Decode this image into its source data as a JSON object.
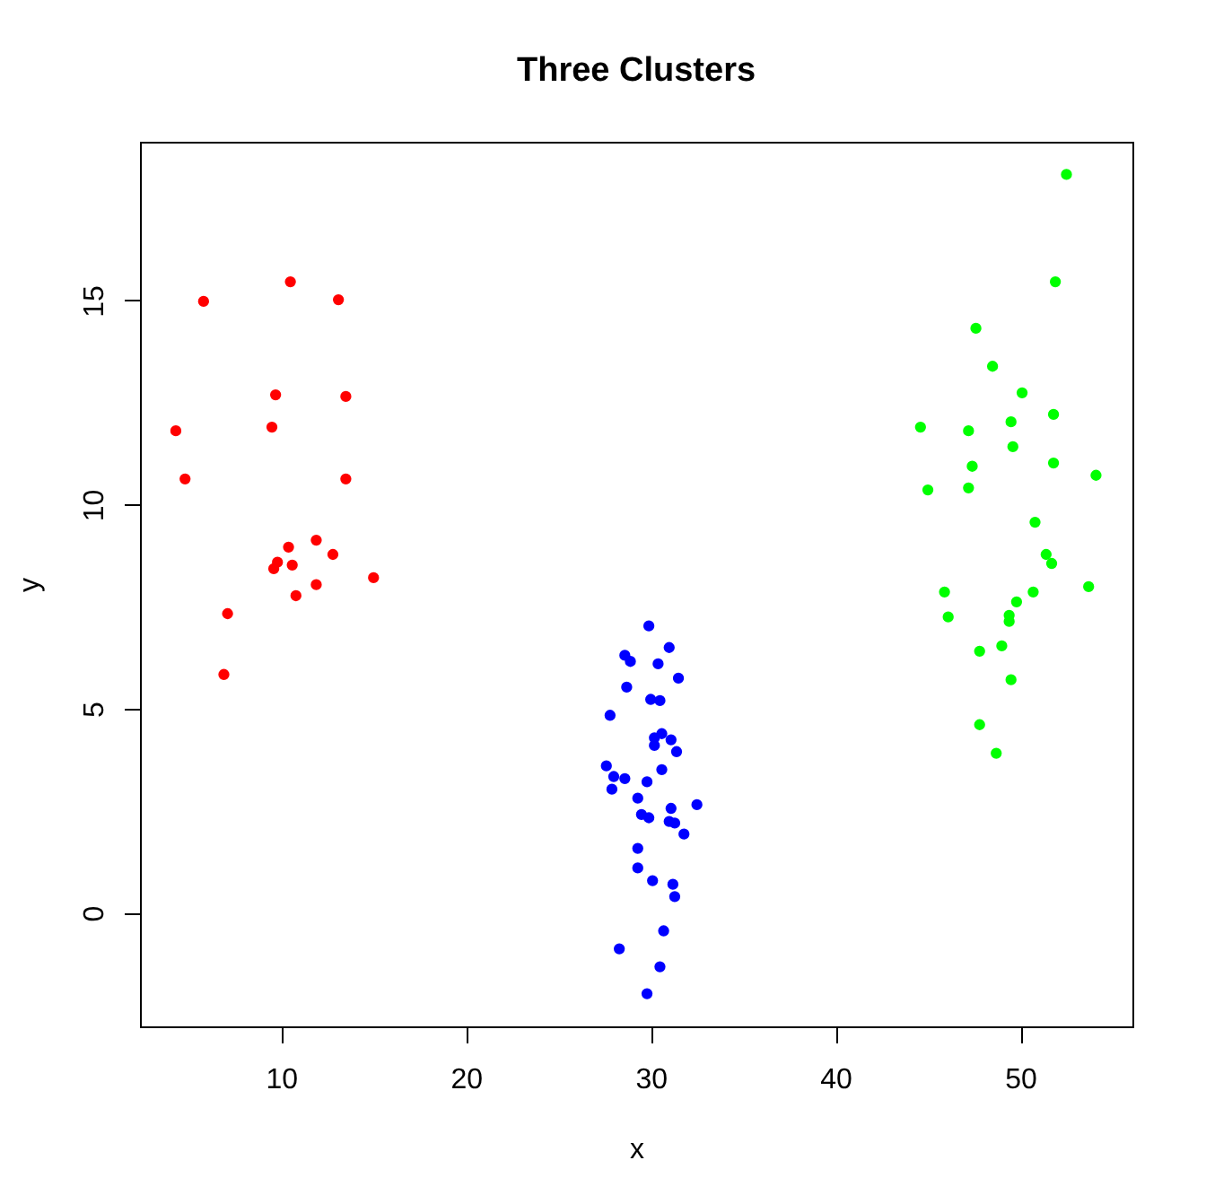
{
  "chart_data": {
    "type": "scatter",
    "title": "Three Clusters",
    "xlabel": "x",
    "ylabel": "y",
    "xlim": [
      2.36,
      56.07
    ],
    "ylim": [
      -2.78,
      18.89
    ],
    "xticks": [
      10,
      20,
      30,
      40,
      50
    ],
    "yticks": [
      0,
      5,
      10,
      15
    ],
    "marker": "circle",
    "series": [
      {
        "color": "#ff0000",
        "x": [
          10.5,
          5.8,
          13.1,
          9.7,
          13.5,
          4.3,
          9.5,
          4.8,
          13.5,
          11.9,
          10.4,
          12.8,
          9.8,
          10.6,
          9.6,
          15.0,
          11.9,
          10.8,
          7.1,
          6.9
        ],
        "values": [
          15.46,
          14.98,
          15.02,
          12.69,
          12.65,
          11.81,
          11.9,
          10.63,
          10.63,
          9.13,
          8.96,
          8.78,
          8.59,
          8.52,
          8.43,
          8.21,
          8.04,
          7.77,
          7.33,
          5.84
        ]
      },
      {
        "color": "#0000ff",
        "x": [
          29.9,
          31.0,
          28.6,
          28.9,
          30.4,
          31.5,
          28.7,
          30.0,
          30.5,
          27.8,
          30.6,
          30.2,
          31.1,
          30.2,
          31.4,
          27.6,
          30.6,
          28.0,
          28.6,
          29.8,
          27.9,
          29.3,
          32.5,
          31.1,
          29.5,
          29.9,
          31.0,
          31.3,
          31.8,
          29.3,
          29.3,
          30.1,
          31.2,
          31.3,
          30.7,
          28.3,
          30.5,
          29.8
        ],
        "values": [
          7.03,
          6.5,
          6.31,
          6.16,
          6.1,
          5.75,
          5.53,
          5.23,
          5.2,
          4.84,
          4.39,
          4.29,
          4.24,
          4.1,
          3.95,
          3.6,
          3.51,
          3.34,
          3.29,
          3.21,
          3.03,
          2.81,
          2.65,
          2.56,
          2.41,
          2.33,
          2.24,
          2.2,
          1.93,
          1.58,
          1.1,
          0.79,
          0.7,
          0.4,
          -0.44,
          -0.88,
          -1.32,
          -1.98
        ]
      },
      {
        "color": "#00ff00",
        "x": [
          52.5,
          51.9,
          47.6,
          48.5,
          50.1,
          51.8,
          44.6,
          49.5,
          47.2,
          49.6,
          47.4,
          51.8,
          54.1,
          45.0,
          47.2,
          50.8,
          51.4,
          51.7,
          45.9,
          53.7,
          50.7,
          49.8,
          46.1,
          49.4,
          49.4,
          47.8,
          49.0,
          49.5,
          47.8,
          48.7
        ],
        "values": [
          18.09,
          15.46,
          14.32,
          13.39,
          12.74,
          12.21,
          11.9,
          12.03,
          11.81,
          11.42,
          10.94,
          11.02,
          10.72,
          10.36,
          10.41,
          9.57,
          8.78,
          8.56,
          7.86,
          7.99,
          7.86,
          7.62,
          7.25,
          7.29,
          7.14,
          6.41,
          6.54,
          5.71,
          4.61,
          3.91
        ]
      }
    ]
  }
}
